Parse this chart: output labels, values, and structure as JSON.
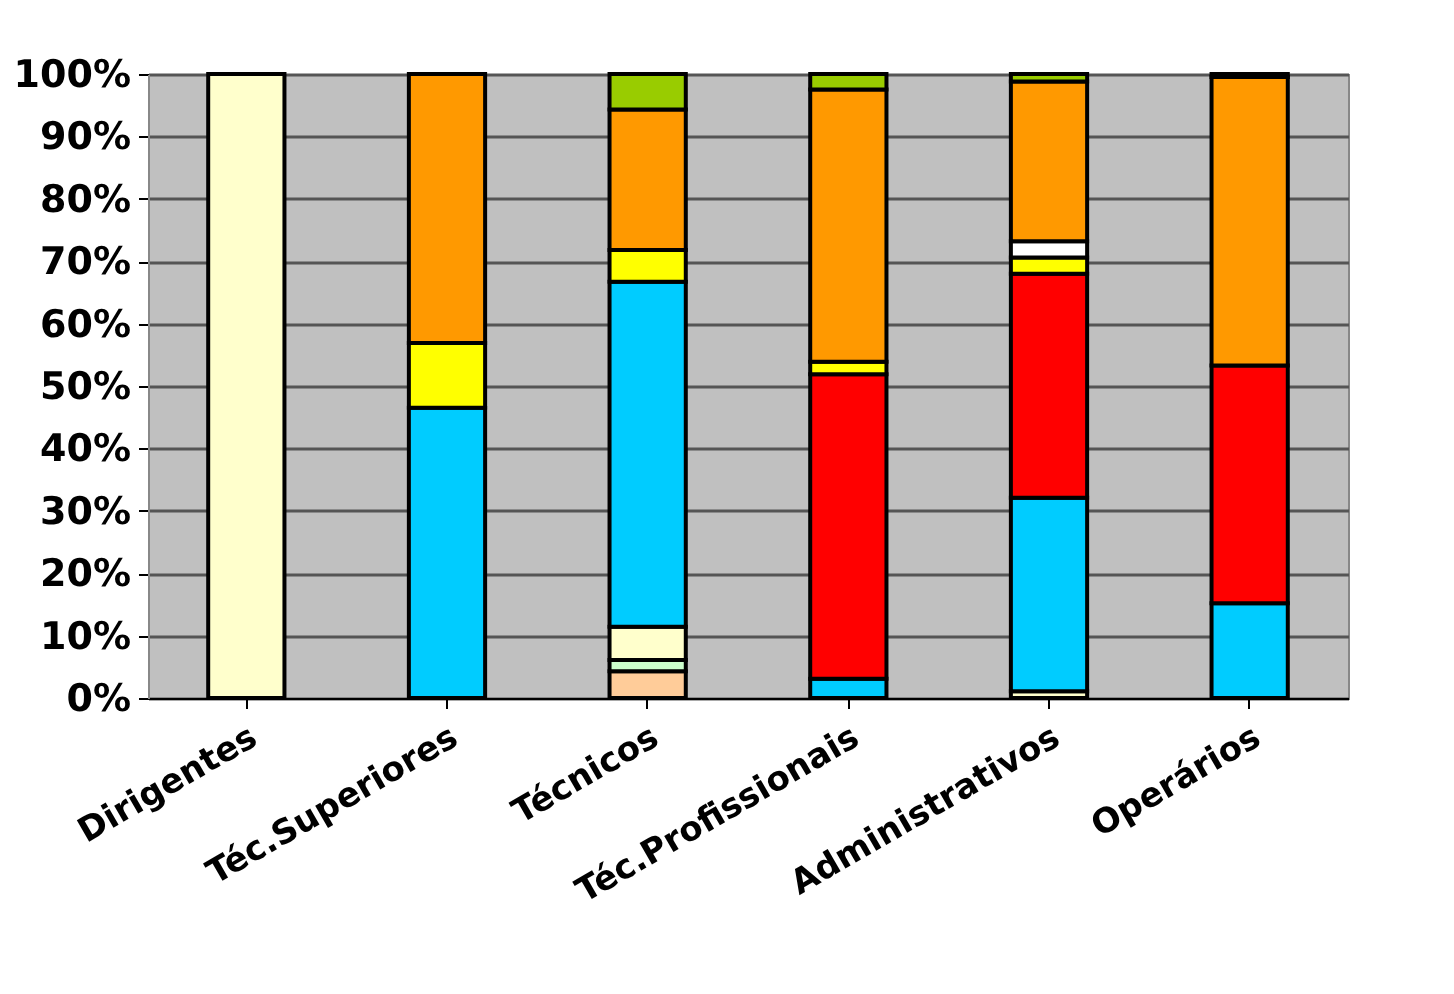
{
  "chart_data": {
    "type": "bar",
    "stacked": true,
    "categories": [
      "Dirigentes",
      "Téc.Superiores",
      "Técnicos",
      "Téc.Profissionais",
      "Administrativos",
      "Operários"
    ],
    "series": [
      {
        "color": "#ffcc99",
        "values": [
          null,
          null,
          4.3,
          null,
          null,
          null
        ]
      },
      {
        "color": "#ccffcc",
        "values": [
          null,
          null,
          1.8,
          null,
          null,
          null
        ]
      },
      {
        "color": "#ffffcc",
        "values": [
          100,
          null,
          5.3,
          null,
          1.1,
          null
        ]
      },
      {
        "color": "#00ccff",
        "values": [
          null,
          46.5,
          55.3,
          3.1,
          31.0,
          15.2
        ]
      },
      {
        "color": "#ff0000",
        "values": [
          null,
          null,
          null,
          48.8,
          35.9,
          38.1
        ]
      },
      {
        "color": "#ffff00",
        "values": [
          null,
          10.4,
          5.1,
          2.0,
          2.6,
          null
        ]
      },
      {
        "color": "#ffffff",
        "values": [
          null,
          null,
          null,
          null,
          2.6,
          null
        ]
      },
      {
        "color": "#ff9900",
        "values": [
          null,
          43.1,
          22.5,
          43.6,
          25.6,
          46.2
        ]
      },
      {
        "color": "#99cc00",
        "values": [
          null,
          null,
          5.7,
          2.5,
          1.2,
          0.5
        ]
      }
    ],
    "ylim": [
      0,
      100
    ],
    "yticks": [
      {
        "value": 0,
        "label": "0%"
      },
      {
        "value": 10,
        "label": "10%"
      },
      {
        "value": 20,
        "label": "20%"
      },
      {
        "value": 30,
        "label": "30%"
      },
      {
        "value": 40,
        "label": "40%"
      },
      {
        "value": 50,
        "label": "50%"
      },
      {
        "value": 60,
        "label": "60%"
      },
      {
        "value": 70,
        "label": "70%"
      },
      {
        "value": 80,
        "label": "80%"
      },
      {
        "value": 90,
        "label": "90%"
      },
      {
        "value": 100,
        "label": "100%"
      }
    ],
    "grid": "y",
    "legend": false
  }
}
